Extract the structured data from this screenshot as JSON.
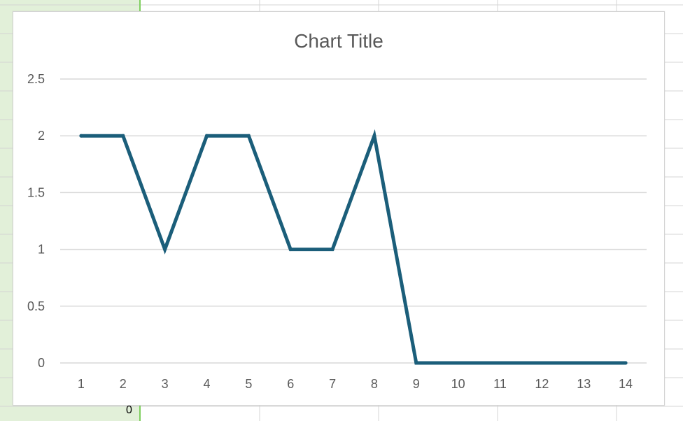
{
  "chart_data": {
    "type": "line",
    "title": "Chart Title",
    "xlabel": "",
    "ylabel": "",
    "categories": [
      "1",
      "2",
      "3",
      "4",
      "5",
      "6",
      "7",
      "8",
      "9",
      "10",
      "11",
      "12",
      "13",
      "14"
    ],
    "series": [
      {
        "values": [
          2,
          2,
          1,
          2,
          2,
          1,
          1,
          2,
          0,
          0,
          0,
          0,
          0,
          0
        ]
      }
    ],
    "ylim": [
      0,
      2.5
    ],
    "yticks": [
      "0",
      "0.5",
      "1",
      "1.5",
      "2",
      "2.5"
    ],
    "grid": true,
    "legend": "none",
    "line_color": "#1b5e7a"
  },
  "sheet": {
    "cell_fragment": "0"
  }
}
